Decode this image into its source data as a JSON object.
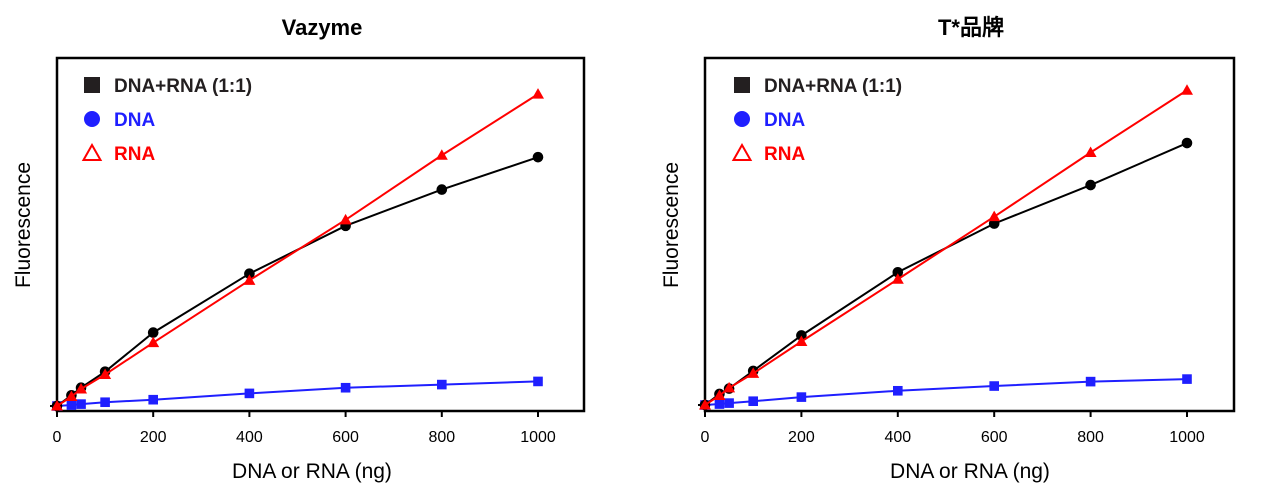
{
  "chart_data": [
    {
      "type": "line",
      "title": "Vazyme",
      "xlabel": "DNA or RNA (ng)",
      "ylabel": "Fluorescence",
      "xlim": [
        0,
        1000
      ],
      "ylim": [
        0,
        1
      ],
      "xticks": [
        0,
        200,
        400,
        600,
        800,
        1000
      ],
      "legend_position": "top-left",
      "grid": false,
      "series": [
        {
          "name": "DNA+RNA (1:1)",
          "color": "#000000",
          "marker": "circle",
          "legend_marker": "square",
          "x": [
            0,
            30,
            50,
            100,
            200,
            400,
            600,
            800,
            1000
          ],
          "y": [
            0,
            0.034,
            0.058,
            0.109,
            0.233,
            0.42,
            0.572,
            0.687,
            0.79
          ]
        },
        {
          "name": "DNA",
          "color": "#1f1fff",
          "marker": "square",
          "legend_marker": "circle",
          "x": [
            0,
            30,
            50,
            100,
            200,
            400,
            600,
            800,
            1000
          ],
          "y": [
            0,
            0.003,
            0.006,
            0.012,
            0.02,
            0.04,
            0.058,
            0.068,
            0.078
          ]
        },
        {
          "name": "RNA",
          "color": "#ff0000",
          "marker": "triangle",
          "legend_marker": "triangle-open",
          "x": [
            0,
            30,
            50,
            100,
            200,
            400,
            600,
            800,
            1000
          ],
          "y": [
            0,
            0.03,
            0.054,
            0.1,
            0.201,
            0.399,
            0.591,
            0.796,
            0.99
          ]
        }
      ]
    },
    {
      "type": "line",
      "title": "T*品牌",
      "xlabel": "DNA or RNA (ng)",
      "ylabel": "Fluorescence",
      "xlim": [
        0,
        1000
      ],
      "ylim": [
        0,
        1
      ],
      "xticks": [
        0,
        200,
        400,
        600,
        800,
        1000
      ],
      "legend_position": "top-left",
      "grid": false,
      "series": [
        {
          "name": "DNA+RNA (1:1)",
          "color": "#000000",
          "marker": "circle",
          "legend_marker": "square",
          "x": [
            0,
            30,
            50,
            100,
            200,
            400,
            600,
            800,
            1000
          ],
          "y": [
            0,
            0.035,
            0.052,
            0.108,
            0.22,
            0.42,
            0.574,
            0.696,
            0.829
          ]
        },
        {
          "name": "DNA",
          "color": "#1f1fff",
          "marker": "square",
          "legend_marker": "circle",
          "x": [
            0,
            30,
            50,
            100,
            200,
            400,
            600,
            800,
            1000
          ],
          "y": [
            0,
            0.003,
            0.006,
            0.012,
            0.025,
            0.045,
            0.06,
            0.074,
            0.082
          ]
        },
        {
          "name": "RNA",
          "color": "#ff0000",
          "marker": "triangle",
          "legend_marker": "triangle-open",
          "x": [
            0,
            30,
            50,
            100,
            200,
            400,
            600,
            800,
            1000
          ],
          "y": [
            0,
            0.03,
            0.054,
            0.1,
            0.201,
            0.398,
            0.596,
            0.799,
            0.996
          ]
        }
      ]
    }
  ]
}
